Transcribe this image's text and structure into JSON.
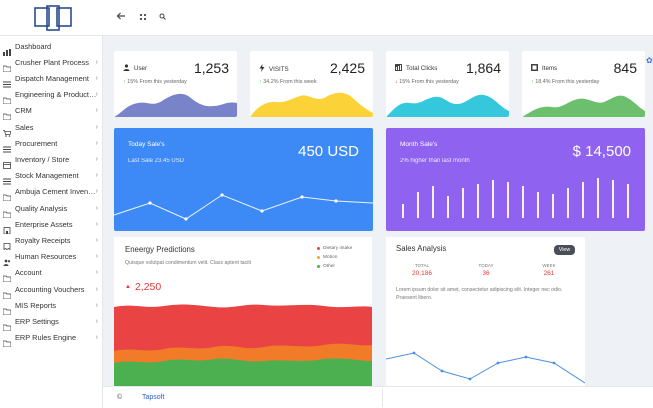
{
  "topbar": {
    "back_icon": "arrow-left-icon",
    "grid_icon": "grid-icon",
    "search_icon": "search-icon"
  },
  "sidebar": {
    "items": [
      {
        "label": "Dashboard",
        "icon": "bar-chart-icon",
        "chevron": false
      },
      {
        "label": "Crusher Plant Process",
        "icon": "folder-icon",
        "chevron": true
      },
      {
        "label": "Dispatch Management",
        "icon": "list-icon",
        "chevron": true
      },
      {
        "label": "Engineering & Production",
        "icon": "folder-icon",
        "chevron": true
      },
      {
        "label": "CRM",
        "icon": "folder-icon",
        "chevron": true
      },
      {
        "label": "Sales",
        "icon": "cart-icon",
        "chevron": true
      },
      {
        "label": "Procurement",
        "icon": "list-icon",
        "chevron": true
      },
      {
        "label": "Inventory / Store",
        "icon": "box-icon",
        "chevron": true
      },
      {
        "label": "Stock Management",
        "icon": "list-icon",
        "chevron": true
      },
      {
        "label": "Ambuja Cement Inventory",
        "icon": "folder-icon",
        "chevron": true
      },
      {
        "label": "Quality Analysis",
        "icon": "folder-icon",
        "chevron": true
      },
      {
        "label": "Enterprise Assets",
        "icon": "building-icon",
        "chevron": true
      },
      {
        "label": "Royalty Receipts",
        "icon": "receipt-icon",
        "chevron": true
      },
      {
        "label": "Human Resources",
        "icon": "users-icon",
        "chevron": true
      },
      {
        "label": "Account",
        "icon": "folder-icon",
        "chevron": true
      },
      {
        "label": "Accounting Vouchers",
        "icon": "folder-icon",
        "chevron": true
      },
      {
        "label": "MIS Reports",
        "icon": "folder-icon",
        "chevron": true
      },
      {
        "label": "ERP Settings",
        "icon": "folder-icon",
        "chevron": true
      },
      {
        "label": "ERP Rules Engine",
        "icon": "folder-icon",
        "chevron": true
      }
    ]
  },
  "stats": [
    {
      "label": "User",
      "icon": "user-icon",
      "value": "1,253",
      "trend": "up",
      "sub": "15% From this yesterday",
      "color": "#5c6bc0"
    },
    {
      "label": "VISITS",
      "icon": "bolt-icon",
      "value": "2,425",
      "trend": "up",
      "sub": "34.2% From this week",
      "color": "#fdd835"
    },
    {
      "label": "Total Clicks",
      "icon": "chart-icon",
      "value": "1,864",
      "trend": "down",
      "sub": "15% From this yesterday",
      "color": "#26c6da"
    },
    {
      "label": "Items",
      "icon": "box-icon",
      "value": "845",
      "trend": "up",
      "sub": "18.4% From this yesterday",
      "color": "#66bb6a"
    }
  ],
  "today_sales": {
    "title": "Today Sale's",
    "subtitle": "Last Sale 23.45 USD",
    "value": "450 USD",
    "color": "#3d8af7"
  },
  "month_sales": {
    "title": "Month Sale's",
    "subtitle": "2% higher than last month",
    "value": "$ 14,500",
    "color": "#8f63f0"
  },
  "energy": {
    "title": "Eneergy Predictions",
    "description": "Quisque volutpat condimentum velit. Class aptent taciti",
    "value": "2,250",
    "legend": [
      {
        "label": "Dietary intake",
        "color": "#e94343"
      },
      {
        "label": "Motion",
        "color": "#f5a623"
      },
      {
        "label": "Other",
        "color": "#4caf50"
      }
    ]
  },
  "sales_analysis": {
    "title": "Sales Analysis",
    "view_label": "View",
    "columns": [
      {
        "label": "TOTAL",
        "value": "20,186"
      },
      {
        "label": "TODAY",
        "value": "36"
      },
      {
        "label": "WEEK",
        "value": "261"
      }
    ],
    "description": "Lorem ipsum dolor sit amet, consectetur adipiscing elit. Integer nec odio. Praesent libero."
  },
  "footer": {
    "copyright": "©",
    "brand": "Tapsoft"
  }
}
